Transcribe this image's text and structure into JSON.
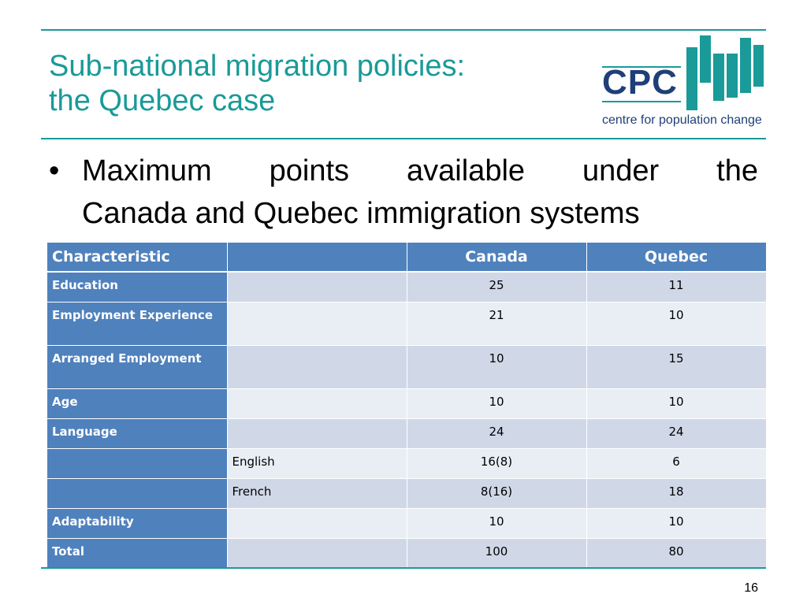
{
  "title": {
    "line1": "Sub-national migration policies:",
    "line2": "the Quebec case"
  },
  "logo": {
    "abbr": "CPC",
    "tagline": "centre for population change"
  },
  "bullet": {
    "line1_words": [
      "Maximum",
      "points",
      "available",
      "under",
      "the"
    ],
    "line2": "Canada and Quebec immigration systems"
  },
  "table": {
    "headers": [
      "Characteristic",
      "",
      "Canada",
      "Quebec"
    ],
    "rows": [
      {
        "characteristic": "Education",
        "sub": "",
        "canada": "25",
        "quebec": "11"
      },
      {
        "characteristic": "Employment Experience",
        "sub": "",
        "canada": "21",
        "quebec": "10"
      },
      {
        "characteristic": "Arranged Employment",
        "sub": "",
        "canada": "10",
        "quebec": "15"
      },
      {
        "characteristic": "Age",
        "sub": "",
        "canada": "10",
        "quebec": "10"
      },
      {
        "characteristic": "Language",
        "sub": "",
        "canada": "24",
        "quebec": "24"
      },
      {
        "characteristic": "",
        "sub": "English",
        "canada": "16(8)",
        "quebec": "6"
      },
      {
        "characteristic": "",
        "sub": "French",
        "canada": "8(16)",
        "quebec": "18"
      },
      {
        "characteristic": "Adaptability",
        "sub": "",
        "canada": "10",
        "quebec": "10"
      },
      {
        "characteristic": "Total",
        "sub": "",
        "canada": "100",
        "quebec": "80"
      }
    ]
  },
  "page_number": "16",
  "colors": {
    "accent": "#1a9a98",
    "header_blue": "#4f81bd",
    "row_odd": "#d0d8e8",
    "row_even": "#e9edf4",
    "logo_navy": "#1f3f77"
  }
}
